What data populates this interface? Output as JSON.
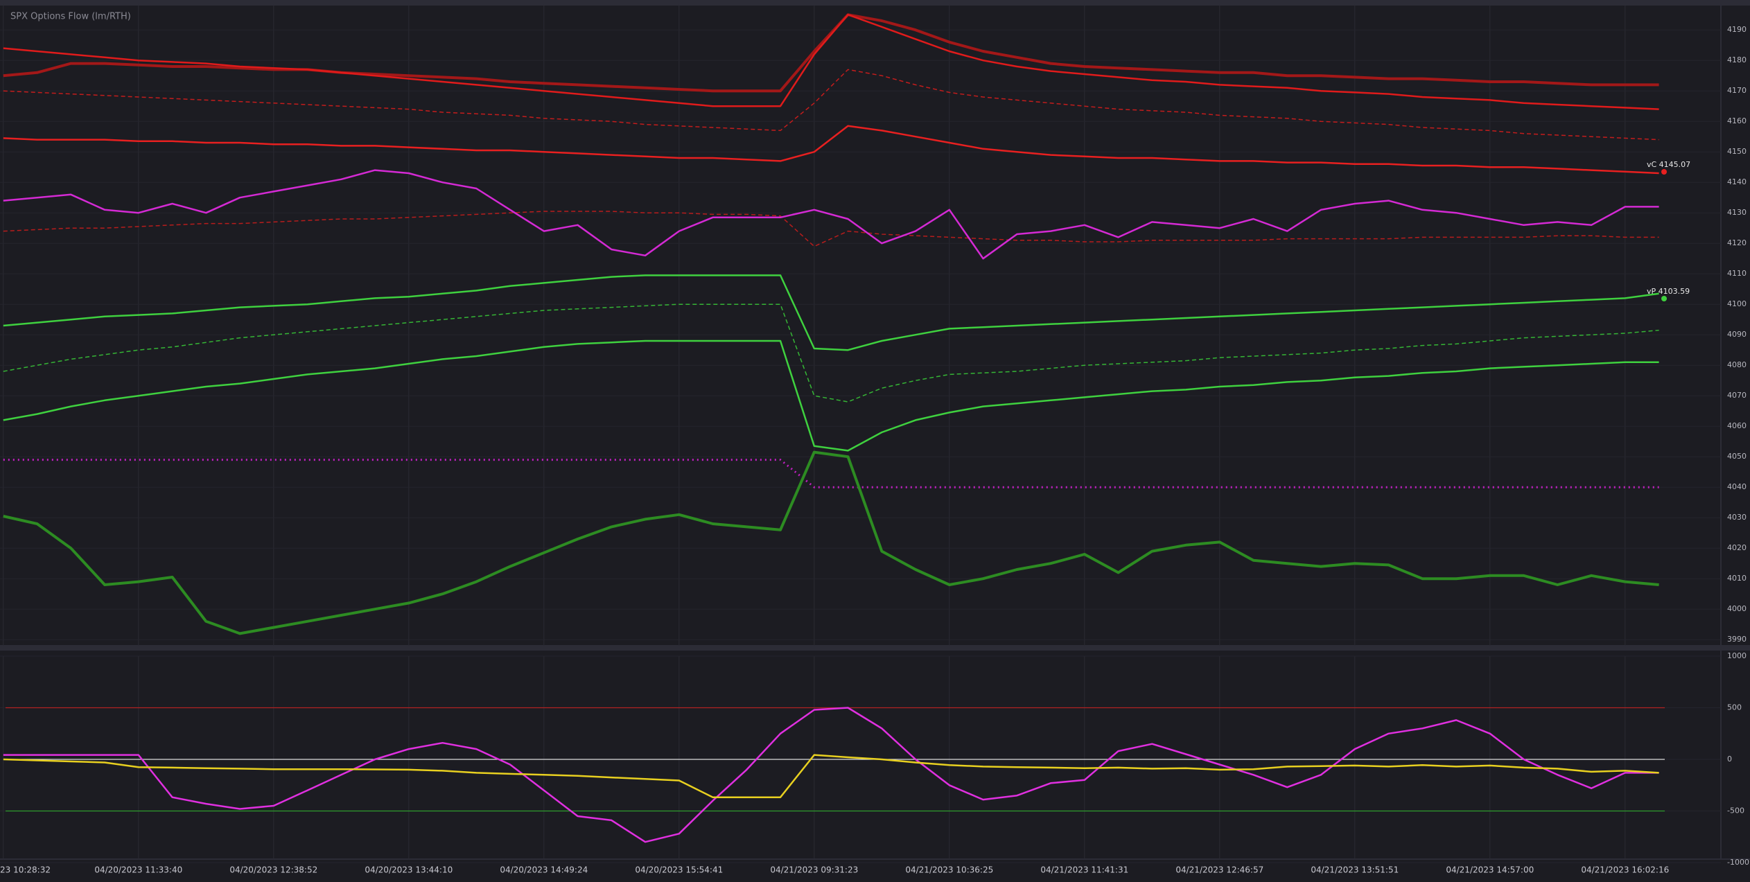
{
  "chart_data": [
    {
      "type": "line",
      "title": "SPX Options Flow (lm/RTH)",
      "ylim": [
        3988,
        4198
      ],
      "yticks": [
        3990,
        4000,
        4010,
        4020,
        4030,
        4040,
        4050,
        4060,
        4070,
        4080,
        4090,
        4100,
        4110,
        4120,
        4130,
        4140,
        4150,
        4160,
        4170,
        4180,
        4190
      ],
      "grid": true,
      "annotations": [
        "vC 4145.07",
        "vP 4103.59"
      ],
      "series": [
        {
          "color": "#a31818",
          "style": "thick",
          "values": [
            4175,
            4176,
            4179,
            4179,
            4178.5,
            4178,
            4178,
            4177.5,
            4177,
            4177,
            4176,
            4175.5,
            4175,
            4174.5,
            4174,
            4173,
            4172.5,
            4172,
            4171.5,
            4171,
            4170.5,
            4170,
            4170,
            4170,
            4183,
            4195,
            4193,
            4190,
            4186,
            4183,
            4181,
            4179,
            4178,
            4177.5,
            4177,
            4176.5,
            4176,
            4176,
            4175,
            4175,
            4174.5,
            4174,
            4174,
            4173.5,
            4173,
            4173,
            4172.5,
            4172,
            4172,
            4172
          ]
        },
        {
          "color": "#e01b1b",
          "style": "solid",
          "values": [
            4184,
            4183,
            4182,
            4181,
            4180,
            4179.5,
            4179,
            4178,
            4177.5,
            4177,
            4176,
            4175,
            4174,
            4173,
            4172,
            4171,
            4170,
            4169,
            4168,
            4167,
            4166,
            4165,
            4165,
            4165,
            4182,
            4195,
            4191,
            4187,
            4183,
            4180,
            4178,
            4176.5,
            4175.5,
            4174.5,
            4173.5,
            4173,
            4172,
            4171.5,
            4171,
            4170,
            4169.5,
            4169,
            4168,
            4167.5,
            4167,
            4166,
            4165.5,
            4165,
            4164.5,
            4164
          ]
        },
        {
          "color": "#c41c1c",
          "style": "dashed",
          "values": [
            4170,
            4169.5,
            4169,
            4168.5,
            4168,
            4167.5,
            4167,
            4166.5,
            4166,
            4165.5,
            4165,
            4164.5,
            4164,
            4163,
            4162.5,
            4162,
            4161,
            4160.5,
            4160,
            4159,
            4158.5,
            4158,
            4157.5,
            4157,
            4166,
            4177,
            4175,
            4172,
            4169.5,
            4168,
            4167,
            4166,
            4165,
            4164,
            4163.5,
            4163,
            4162,
            4161.5,
            4161,
            4160,
            4159.5,
            4159,
            4158,
            4157.5,
            4157,
            4156,
            4155.5,
            4155,
            4154.5,
            4154
          ]
        },
        {
          "color": "#e82020",
          "style": "solid",
          "values": [
            4154.5,
            4154,
            4154,
            4154,
            4153.5,
            4153.5,
            4153,
            4153,
            4152.5,
            4152.5,
            4152,
            4152,
            4151.5,
            4151,
            4150.5,
            4150.5,
            4150,
            4149.5,
            4149,
            4148.5,
            4148,
            4148,
            4147.5,
            4147,
            4150,
            4158.5,
            4157,
            4155,
            4153,
            4151,
            4150,
            4149,
            4148.5,
            4148,
            4148,
            4147.5,
            4147,
            4147,
            4146.5,
            4146.5,
            4146,
            4146,
            4145.5,
            4145.5,
            4145,
            4145,
            4144.5,
            4144,
            4143.5,
            4143
          ]
        },
        {
          "color": "#b81c1c",
          "style": "dashed",
          "values": [
            4124,
            4124.5,
            4125,
            4125,
            4125.5,
            4126,
            4126.5,
            4126.5,
            4127,
            4127.5,
            4128,
            4128,
            4128.5,
            4129,
            4129.5,
            4130,
            4130.5,
            4130.5,
            4130.5,
            4130,
            4130,
            4129.5,
            4129.5,
            4129,
            4119,
            4124,
            4123,
            4122.5,
            4122,
            4121.5,
            4121,
            4121,
            4120.5,
            4120.5,
            4121,
            4121,
            4121,
            4121,
            4121.5,
            4121.5,
            4121.5,
            4121.5,
            4122,
            4122,
            4122,
            4122,
            4122.5,
            4122.5,
            4122,
            4122
          ]
        },
        {
          "color": "#d42ad4",
          "style": "solid",
          "values": [
            4134,
            4135,
            4136,
            4131,
            4130,
            4133,
            4130,
            4135,
            4137,
            4139,
            4141,
            4144,
            4143,
            4140,
            4138,
            4131,
            4124,
            4126,
            4118,
            4116,
            4124,
            4128.5,
            4128.5,
            4128.5,
            4131,
            4128,
            4120,
            4124,
            4131,
            4115,
            4123,
            4124,
            4126,
            4122,
            4127,
            4126,
            4125,
            4128,
            4124,
            4131,
            4133,
            4134,
            4131,
            4130,
            4128,
            4126,
            4127,
            4126,
            4132,
            4132
          ]
        },
        {
          "color": "#3fd13f",
          "style": "solid",
          "values": [
            4093,
            4094,
            4095,
            4096,
            4096.5,
            4097,
            4098,
            4099,
            4099.5,
            4100,
            4101,
            4102,
            4102.5,
            4103.5,
            4104.5,
            4106,
            4107,
            4108,
            4109,
            4109.5,
            4109.5,
            4109.5,
            4109.5,
            4109.5,
            4085.5,
            4085,
            4088,
            4090,
            4092,
            4092.5,
            4093,
            4093.5,
            4094,
            4094.5,
            4095,
            4095.5,
            4096,
            4096.5,
            4097,
            4097.5,
            4098,
            4098.5,
            4099,
            4099.5,
            4100,
            4100.5,
            4101,
            4101.5,
            4102,
            4103.5
          ]
        },
        {
          "color": "#35b535",
          "style": "dashed",
          "values": [
            4078,
            4080,
            4082,
            4083.5,
            4085,
            4086,
            4087.5,
            4089,
            4090,
            4091,
            4092,
            4093,
            4094,
            4095,
            4096,
            4097,
            4098,
            4098.5,
            4099,
            4099.5,
            4100,
            4100,
            4100,
            4100,
            4070,
            4068,
            4072.5,
            4075,
            4077,
            4077.5,
            4078,
            4079,
            4080,
            4080.5,
            4081,
            4081.5,
            4082.5,
            4083,
            4083.5,
            4084,
            4085,
            4085.5,
            4086.5,
            4087,
            4088,
            4089,
            4089.5,
            4090,
            4090.5,
            4091.5
          ]
        },
        {
          "color": "#3fd13f",
          "style": "solid",
          "values": [
            4062,
            4064,
            4066.5,
            4068.5,
            4070,
            4071.5,
            4073,
            4074,
            4075.5,
            4077,
            4078,
            4079,
            4080.5,
            4082,
            4083,
            4084.5,
            4086,
            4087,
            4087.5,
            4088,
            4088,
            4088,
            4088,
            4088,
            4053.5,
            4052,
            4058,
            4062,
            4064.5,
            4066.5,
            4067.5,
            4068.5,
            4069.5,
            4070.5,
            4071.5,
            4072,
            4073,
            4073.5,
            4074.5,
            4075,
            4076,
            4076.5,
            4077.5,
            4078,
            4079,
            4079.5,
            4080,
            4080.5,
            4081,
            4081
          ]
        },
        {
          "color": "#c020c0",
          "style": "dotted",
          "values": [
            4049,
            4049,
            4049,
            4049,
            4049,
            4049,
            4049,
            4049,
            4049,
            4049,
            4049,
            4049,
            4049,
            4049,
            4049,
            4049,
            4049,
            4049,
            4049,
            4049,
            4049,
            4049,
            4049,
            4049,
            4040,
            4040,
            4040,
            4040,
            4040,
            4040,
            4040,
            4040,
            4040,
            4040,
            4040,
            4040,
            4040,
            4040,
            4040,
            4040,
            4040,
            4040,
            4040,
            4040,
            4040,
            4040,
            4040,
            4040,
            4040,
            4040
          ]
        },
        {
          "color": "#2d8c22",
          "style": "thick",
          "values": [
            4030.5,
            4028,
            4020,
            4008,
            4009,
            4010.5,
            3996,
            3992,
            3994,
            3996,
            3998,
            4000,
            4002,
            4005,
            4009,
            4014,
            4018.5,
            4023,
            4027,
            4029.5,
            4031,
            4028,
            4027,
            4026,
            4051.5,
            4050,
            4019,
            4013,
            4008,
            4010,
            4013,
            4015,
            4018,
            4012,
            4019,
            4021,
            4022,
            4016,
            4015,
            4014,
            4015,
            4014.5,
            4010,
            4010,
            4011,
            4011,
            4008,
            4011,
            4009,
            4008
          ]
        }
      ]
    },
    {
      "type": "line",
      "categories": [
        "23 10:28:32",
        null,
        null,
        null,
        "04/20/2023 11:33:40",
        null,
        null,
        null,
        "04/20/2023 12:38:52",
        null,
        null,
        null,
        "04/20/2023 13:44:10",
        null,
        null,
        null,
        "04/20/2023 14:49:24",
        null,
        null,
        null,
        "04/20/2023 15:54:41",
        null,
        null,
        null,
        "04/21/2023 09:31:23",
        null,
        null,
        null,
        "04/21/2023 10:36:25",
        null,
        null,
        null,
        "04/21/2023 11:41:31",
        null,
        null,
        null,
        "04/21/2023 12:46:57",
        null,
        null,
        null,
        "04/21/2023 13:51:51",
        null,
        null,
        null,
        "04/21/2023 14:57:00",
        null,
        null,
        null,
        "04/21/2023 16:02:16",
        null
      ],
      "ylim": [
        -1000,
        1000
      ],
      "yticks": [
        -1000,
        -500,
        0,
        500,
        1000
      ],
      "grid": true,
      "reference_lines": [
        {
          "value": 500,
          "color": "#b22222"
        },
        {
          "value": 0,
          "color": "#dddddd"
        },
        {
          "value": -500,
          "color": "#2e9e2e"
        }
      ],
      "series": [
        {
          "color": "#e030e0",
          "style": "solid",
          "values": [
            43,
            43,
            43,
            43,
            43,
            -367,
            -430,
            -480,
            -450,
            -300,
            -150,
            0,
            100,
            160,
            100,
            -50,
            -300,
            -550,
            -590,
            -800,
            -720,
            -400,
            -100,
            250,
            480,
            500,
            300,
            0,
            -250,
            -390,
            -350,
            -230,
            -200,
            80,
            150,
            50,
            -50,
            -150,
            -270,
            -150,
            100,
            250,
            300,
            380,
            250,
            0,
            -150,
            -280,
            -130,
            -130
          ]
        },
        {
          "color": "#e8d020",
          "style": "solid",
          "values": [
            0,
            -10,
            -20,
            -30,
            -75,
            -80,
            -85,
            -90,
            -95,
            -95,
            -95,
            -97,
            -100,
            -110,
            -130,
            -140,
            -150,
            -160,
            -175,
            -190,
            -205,
            -367,
            -367,
            -367,
            43,
            20,
            0,
            -30,
            -55,
            -70,
            -75,
            -80,
            -85,
            -80,
            -90,
            -85,
            -100,
            -95,
            -70,
            -65,
            -60,
            -70,
            -55,
            -70,
            -60,
            -80,
            -90,
            -120,
            -110,
            -130
          ]
        }
      ]
    }
  ]
}
